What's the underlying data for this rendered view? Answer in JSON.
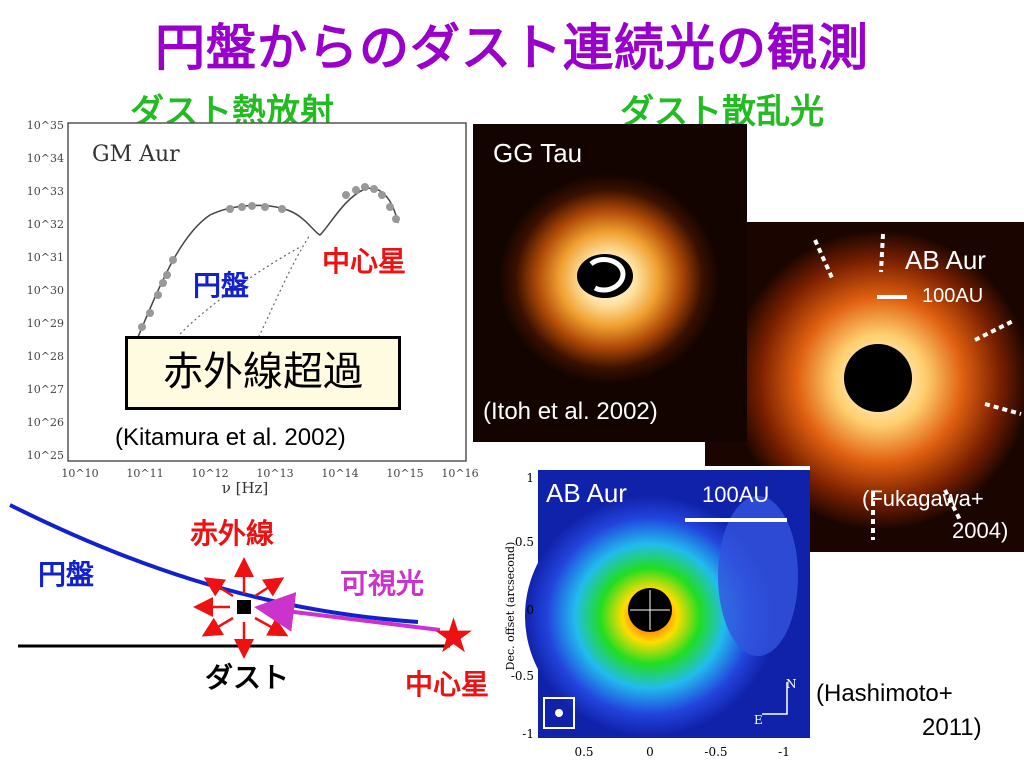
{
  "slide": {
    "title": "円盤からのダスト連続光の観測",
    "subtitle_left": "ダスト熱放射",
    "subtitle_right": "ダスト散乱光"
  },
  "sed_plot": {
    "object": "GM Aur",
    "y_ticks": [
      "10^35",
      "10^34",
      "10^33",
      "10^32",
      "10^31",
      "10^30",
      "10^29",
      "10^28",
      "10^27",
      "10^26",
      "10^25"
    ],
    "x_ticks": [
      "10^10",
      "10^11",
      "10^12",
      "10^13",
      "10^14",
      "10^15",
      "10^16"
    ],
    "xlabel": "ν [Hz]",
    "label_disk": "円盤",
    "label_star": "中心星",
    "label_excess": "赤外線超過",
    "citation": "(Kitamura et al. 2002)"
  },
  "schematic": {
    "label_disk": "円盤",
    "label_ir": "赤外線",
    "label_visible": "可視光",
    "label_dust": "ダスト",
    "label_star": "中心星"
  },
  "ggtau": {
    "name": "GG Tau",
    "citation": "(Itoh et al. 2002)"
  },
  "abaur_top": {
    "name": "AB Aur",
    "scale": "100AU",
    "citation": "(Fukagawa+ 2004)",
    "citation_line1": "(Fukagawa+",
    "citation_line2": "2004)"
  },
  "abaur_bottom": {
    "name": "AB Aur",
    "scale": "100AU",
    "ylabel": "Dec. offset (arcsecond)",
    "y_ticks": [
      "1",
      "0.5",
      "0",
      "-0.5",
      "-1"
    ],
    "x_ticks": [
      "0.5",
      "0",
      "-0.5",
      "-1"
    ],
    "north": "N",
    "east": "E",
    "citation_line1": "(Hashimoto+",
    "citation_line2": "2011)"
  },
  "colors": {
    "title": "#9900cc",
    "subtitle": "#22bb22",
    "red": "#ee1111",
    "blue": "#1122cc",
    "purple": "#cc33cc"
  }
}
